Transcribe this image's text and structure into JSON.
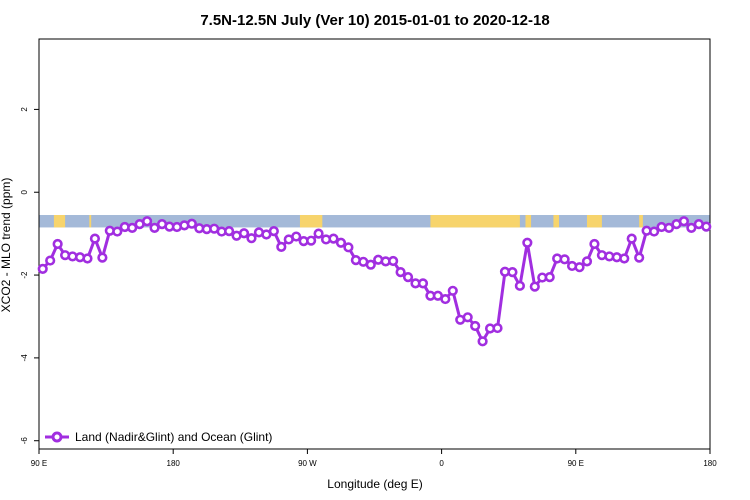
{
  "chart_data": {
    "type": "line",
    "title": "7.5N-12.5N July (Ver 10)   2015-01-01 to 2020-12-18",
    "xlabel": "Longitude (deg E)",
    "ylabel": "XCO2 - MLO trend (ppm)",
    "xlim": [
      90,
      450
    ],
    "ylim": [
      -6.2,
      3.7
    ],
    "x_ticks": [
      {
        "value": 90,
        "label": "90 E"
      },
      {
        "value": 162,
        "label": "180"
      },
      {
        "value": 234,
        "label": "90 W"
      },
      {
        "value": 306,
        "label": "0"
      },
      {
        "value": 378,
        "label": "90 E"
      },
      {
        "value": 450,
        "label": "180"
      }
    ],
    "y_ticks": [
      {
        "value": 2,
        "label": "2"
      },
      {
        "value": 0,
        "label": "0"
      },
      {
        "value": -2,
        "label": "-2"
      },
      {
        "value": -4,
        "label": "-4"
      },
      {
        "value": -6,
        "label": "-6"
      }
    ],
    "land_ocean_band": {
      "y_range": [
        -0.85,
        -0.55
      ],
      "ocean_color": "#a4b9d8",
      "land_color": "#f7d46c",
      "land_segments": [
        [
          98,
          104
        ],
        [
          117,
          118
        ],
        [
          230,
          242
        ],
        [
          300,
          348
        ],
        [
          351,
          354
        ],
        [
          366,
          369
        ],
        [
          384,
          392
        ],
        [
          412,
          414
        ]
      ]
    },
    "grid": false,
    "legend_position": "bottom-left",
    "series": [
      {
        "name": "Land (Nadir&Glint) and Ocean (Glint)",
        "color": "#a12ee0",
        "x": [
          92,
          96,
          100,
          104,
          108,
          112,
          116,
          120,
          124,
          128,
          132,
          136,
          140,
          144,
          148,
          152,
          156,
          160,
          164,
          168,
          172,
          176,
          180,
          184,
          188,
          192,
          196,
          200,
          204,
          208,
          212,
          216,
          220,
          224,
          228,
          232,
          236,
          240,
          244,
          248,
          252,
          256,
          260,
          264,
          268,
          272,
          276,
          280,
          284,
          288,
          292,
          296,
          300,
          304,
          308,
          312,
          316,
          320,
          324,
          328,
          332,
          336,
          340,
          344,
          348,
          352,
          356,
          360,
          364,
          368,
          372,
          376,
          380,
          384,
          388,
          392,
          396,
          400,
          404,
          408,
          412,
          416,
          420,
          424,
          428,
          432,
          436,
          440,
          444,
          448
        ],
        "values": [
          -1.85,
          -1.65,
          -1.25,
          -1.52,
          -1.55,
          -1.57,
          -1.6,
          -1.12,
          -1.58,
          -0.93,
          -0.95,
          -0.84,
          -0.86,
          -0.77,
          -0.7,
          -0.86,
          -0.77,
          -0.83,
          -0.84,
          -0.8,
          -0.76,
          -0.87,
          -0.89,
          -0.88,
          -0.95,
          -0.94,
          -1.05,
          -0.99,
          -1.11,
          -0.97,
          -1.02,
          -0.94,
          -1.32,
          -1.14,
          -1.07,
          -1.18,
          -1.17,
          -1.0,
          -1.14,
          -1.12,
          -1.22,
          -1.33,
          -1.64,
          -1.68,
          -1.75,
          -1.63,
          -1.67,
          -1.66,
          -1.93,
          -2.05,
          -2.2,
          -2.2,
          -2.5,
          -2.5,
          -2.58,
          -2.38,
          -3.08,
          -3.02,
          -3.23,
          -3.6,
          -3.29,
          -3.28,
          -1.92,
          -1.93,
          -2.26,
          -1.22,
          -2.28,
          -2.06,
          -2.05,
          -1.6,
          -1.62,
          -1.78,
          -1.81,
          -1.67,
          -1.25,
          -1.52,
          -1.55,
          -1.57,
          -1.6,
          -1.12,
          -1.58,
          -0.93,
          -0.95,
          -0.84,
          -0.86,
          -0.77,
          -0.7,
          -0.86,
          -0.77,
          -0.83
        ]
      }
    ]
  }
}
